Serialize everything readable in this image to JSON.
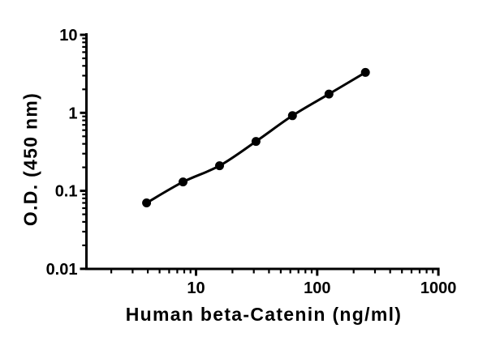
{
  "figure": {
    "background_color": "#ffffff",
    "axis_color": "#000000",
    "curve_color": "#000000",
    "marker_color": "#000000"
  },
  "chart_data": {
    "type": "scatter",
    "title": "",
    "xlabel": "Human beta-Catenin (ng/ml)",
    "ylabel": "O.D. (450 nm)",
    "x_scale": "log",
    "y_scale": "log",
    "xlim": [
      1.2,
      1000
    ],
    "ylim": [
      0.01,
      10
    ],
    "grid": false,
    "legend": false,
    "x_major_ticks": [
      10,
      100,
      1000
    ],
    "x_major_tick_labels": [
      "10",
      "100",
      "1000"
    ],
    "x_minor_ticks": [
      2,
      3,
      4,
      5,
      6,
      7,
      8,
      9,
      20,
      30,
      40,
      50,
      60,
      70,
      80,
      90,
      200,
      300,
      400,
      500,
      600,
      700,
      800,
      900
    ],
    "y_major_ticks": [
      10,
      1,
      0.1,
      0.01
    ],
    "y_major_tick_labels": [
      "10",
      "1",
      "0.1",
      "0.01"
    ],
    "y_minor_ticks": [
      0.02,
      0.03,
      0.04,
      0.05,
      0.06,
      0.07,
      0.08,
      0.09,
      0.2,
      0.3,
      0.4,
      0.5,
      0.6,
      0.7,
      0.8,
      0.9,
      2,
      3,
      4,
      5,
      6,
      7,
      8,
      9
    ],
    "series": [
      {
        "name": "standard-curve",
        "marker": "filled-circle",
        "line": "smooth-fit",
        "x": [
          3.91,
          7.81,
          15.63,
          31.25,
          62.5,
          125,
          250
        ],
        "y": [
          0.07,
          0.13,
          0.21,
          0.43,
          0.92,
          1.74,
          3.3
        ]
      }
    ]
  }
}
